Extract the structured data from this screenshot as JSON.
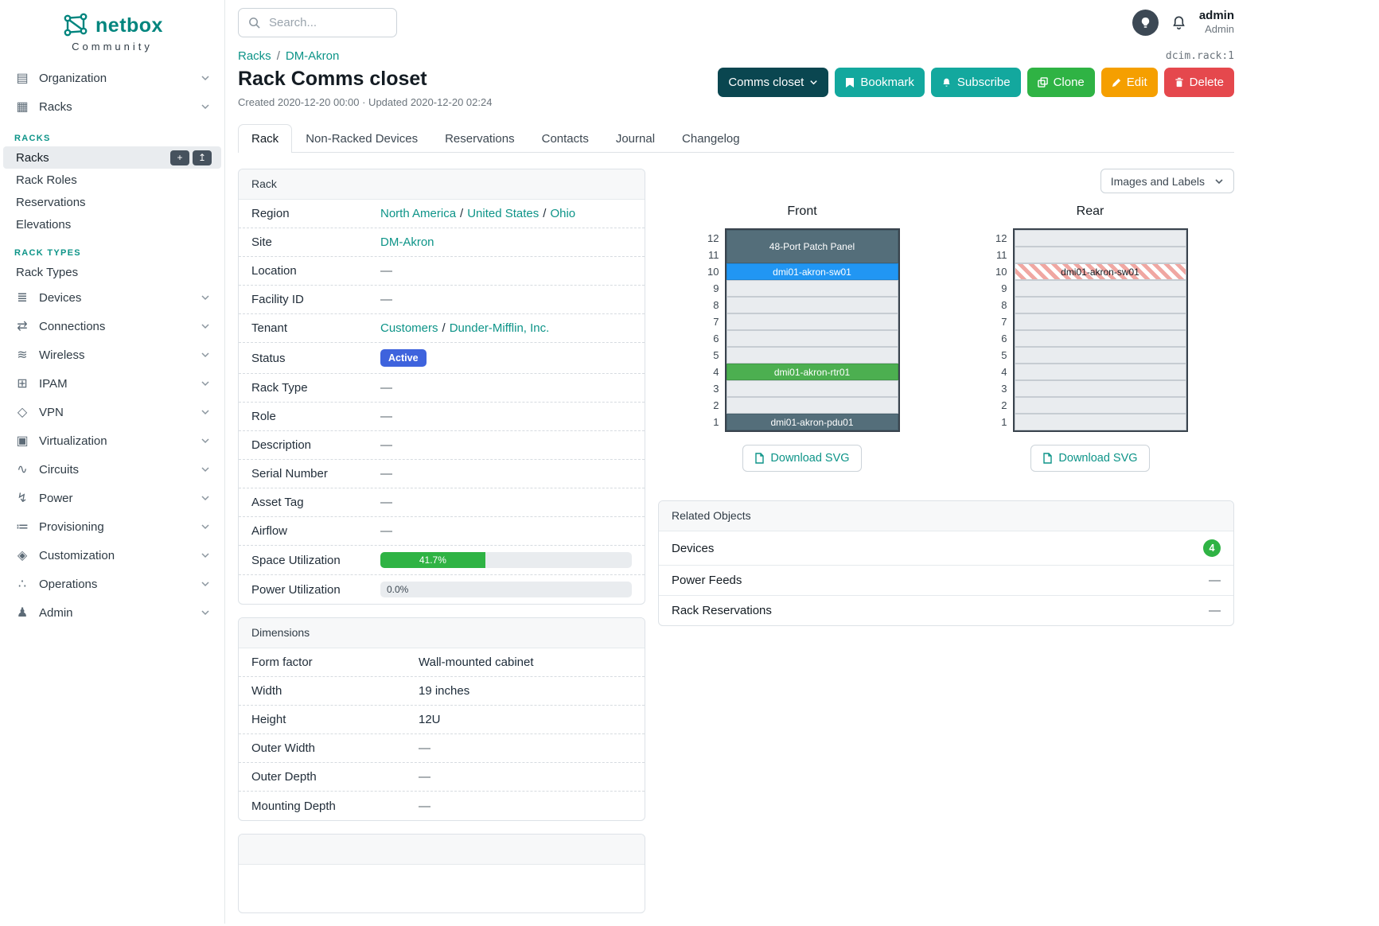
{
  "colors": {
    "brand_teal": "#00857e",
    "link_teal": "#0d9488",
    "button_teal": "#13a89e",
    "context_button_dark_teal": "#0a4650",
    "clone_green": "#2fb344",
    "edit_orange": "#f59f00",
    "delete_red": "#e5484d",
    "status_badge_blue": "#3e63dd",
    "progress_green": "#2fb344",
    "device_blue": "#2196f3",
    "device_green": "#4caf50",
    "device_slate": "#546e7a",
    "rear_stripe_red": "#f0a7a2"
  },
  "topbar": {
    "search_placeholder": "Search...",
    "user_name": "admin",
    "user_role": "Admin"
  },
  "sidebar": {
    "brand": "netbox",
    "brand_subtitle": "Community",
    "items": [
      {
        "label": "Organization",
        "icon": "building-icon",
        "glyph": "▤"
      },
      {
        "label": "Racks",
        "icon": "rack-icon",
        "glyph": "▦",
        "expanded": true,
        "children": [
          {
            "type": "heading",
            "label": "RACKS"
          },
          {
            "type": "link",
            "label": "Racks",
            "active": true,
            "actions": [
              {
                "icon": "plus-icon",
                "glyph": "+"
              },
              {
                "icon": "import-icon",
                "glyph": "↥"
              }
            ]
          },
          {
            "type": "link",
            "label": "Rack Roles"
          },
          {
            "type": "link",
            "label": "Reservations"
          },
          {
            "type": "link",
            "label": "Elevations"
          },
          {
            "type": "heading",
            "label": "RACK TYPES"
          },
          {
            "type": "link",
            "label": "Rack Types"
          }
        ]
      },
      {
        "label": "Devices",
        "icon": "devices-icon",
        "glyph": "≣"
      },
      {
        "label": "Connections",
        "icon": "connections-icon",
        "glyph": "⇄"
      },
      {
        "label": "Wireless",
        "icon": "wifi-icon",
        "glyph": "≋"
      },
      {
        "label": "IPAM",
        "icon": "ipam-icon",
        "glyph": "⊞"
      },
      {
        "label": "VPN",
        "icon": "vpn-icon",
        "glyph": "◇"
      },
      {
        "label": "Virtualization",
        "icon": "virtualization-icon",
        "glyph": "▣"
      },
      {
        "label": "Circuits",
        "icon": "circuits-icon",
        "glyph": "∿"
      },
      {
        "label": "Power",
        "icon": "power-icon",
        "glyph": "↯"
      },
      {
        "label": "Provisioning",
        "icon": "provisioning-icon",
        "glyph": "≔"
      },
      {
        "label": "Customization",
        "icon": "customization-icon",
        "glyph": "◈"
      },
      {
        "label": "Operations",
        "icon": "operations-icon",
        "glyph": "∴"
      },
      {
        "label": "Admin",
        "icon": "admin-icon",
        "glyph": "♟"
      }
    ]
  },
  "breadcrumb": {
    "items": [
      "Racks",
      "DM-Akron"
    ],
    "object_ref": "dcim.rack:1"
  },
  "header": {
    "title": "Rack Comms closet",
    "meta": "Created 2020-12-20 00:00 · Updated 2020-12-20 02:24",
    "context_button": "Comms closet",
    "buttons": {
      "bookmark": "Bookmark",
      "subscribe": "Subscribe",
      "clone": "Clone",
      "edit": "Edit",
      "delete": "Delete"
    }
  },
  "tabs": [
    {
      "label": "Rack",
      "active": true
    },
    {
      "label": "Non-Racked Devices"
    },
    {
      "label": "Reservations"
    },
    {
      "label": "Contacts"
    },
    {
      "label": "Journal"
    },
    {
      "label": "Changelog"
    }
  ],
  "rack_card": {
    "title": "Rack",
    "rows": [
      {
        "label": "Region",
        "type": "links",
        "parts": [
          "North America",
          "United States",
          "Ohio"
        ]
      },
      {
        "label": "Site",
        "type": "links",
        "parts": [
          "DM-Akron"
        ]
      },
      {
        "label": "Location",
        "type": "dash",
        "value": "—"
      },
      {
        "label": "Facility ID",
        "type": "dash",
        "value": "—"
      },
      {
        "label": "Tenant",
        "type": "links",
        "parts": [
          "Customers",
          "Dunder-Mifflin, Inc."
        ]
      },
      {
        "label": "Status",
        "type": "badge",
        "value": "Active"
      },
      {
        "label": "Rack Type",
        "type": "dash",
        "value": "—"
      },
      {
        "label": "Role",
        "type": "dash",
        "value": "—"
      },
      {
        "label": "Description",
        "type": "dash",
        "value": "—"
      },
      {
        "label": "Serial Number",
        "type": "dash",
        "value": "—"
      },
      {
        "label": "Asset Tag",
        "type": "dash",
        "value": "—"
      },
      {
        "label": "Airflow",
        "type": "dash",
        "value": "—"
      },
      {
        "label": "Space Utilization",
        "type": "progress",
        "percent": 41.7,
        "text": "41.7%"
      },
      {
        "label": "Power Utilization",
        "type": "progress",
        "percent": 0.0,
        "text": "0.0%"
      }
    ]
  },
  "dimensions_card": {
    "title": "Dimensions",
    "rows": [
      {
        "label": "Form factor",
        "value": "Wall-mounted cabinet"
      },
      {
        "label": "Width",
        "value": "19 inches"
      },
      {
        "label": "Height",
        "value": "12U"
      },
      {
        "label": "Outer Width",
        "value": "—"
      },
      {
        "label": "Outer Depth",
        "value": "—"
      },
      {
        "label": "Mounting Depth",
        "value": "—"
      }
    ]
  },
  "elevations": {
    "view_selector": "Images and Labels",
    "download_label": "Download SVG",
    "front": {
      "title": "Front",
      "units": [
        {
          "span": 2,
          "label": "48-Port Patch Panel",
          "style": "slate"
        },
        {
          "span": 1,
          "label": "dmi01-akron-sw01",
          "style": "blue"
        },
        {
          "span": 1,
          "label": "",
          "style": "empty"
        },
        {
          "span": 1,
          "label": "",
          "style": "empty"
        },
        {
          "span": 1,
          "label": "",
          "style": "empty"
        },
        {
          "span": 1,
          "label": "",
          "style": "empty"
        },
        {
          "span": 1,
          "label": "",
          "style": "empty"
        },
        {
          "span": 1,
          "label": "dmi01-akron-rtr01",
          "style": "green"
        },
        {
          "span": 1,
          "label": "",
          "style": "empty"
        },
        {
          "span": 1,
          "label": "",
          "style": "empty"
        },
        {
          "span": 1,
          "label": "dmi01-akron-pdu01",
          "style": "slate"
        }
      ]
    },
    "rear": {
      "title": "Rear",
      "units": [
        {
          "span": 1,
          "label": "",
          "style": "empty"
        },
        {
          "span": 1,
          "label": "",
          "style": "empty"
        },
        {
          "span": 1,
          "label": "dmi01-akron-sw01",
          "style": "striped"
        },
        {
          "span": 1,
          "label": "",
          "style": "empty"
        },
        {
          "span": 1,
          "label": "",
          "style": "empty"
        },
        {
          "span": 1,
          "label": "",
          "style": "empty"
        },
        {
          "span": 1,
          "label": "",
          "style": "empty"
        },
        {
          "span": 1,
          "label": "",
          "style": "empty"
        },
        {
          "span": 1,
          "label": "",
          "style": "empty"
        },
        {
          "span": 1,
          "label": "",
          "style": "empty"
        },
        {
          "span": 1,
          "label": "",
          "style": "empty"
        },
        {
          "span": 1,
          "label": "",
          "style": "empty"
        }
      ]
    }
  },
  "related_card": {
    "title": "Related Objects",
    "rows": [
      {
        "label": "Devices",
        "badge": "4"
      },
      {
        "label": "Power Feeds",
        "value": "—"
      },
      {
        "label": "Rack Reservations",
        "value": "—"
      }
    ]
  }
}
